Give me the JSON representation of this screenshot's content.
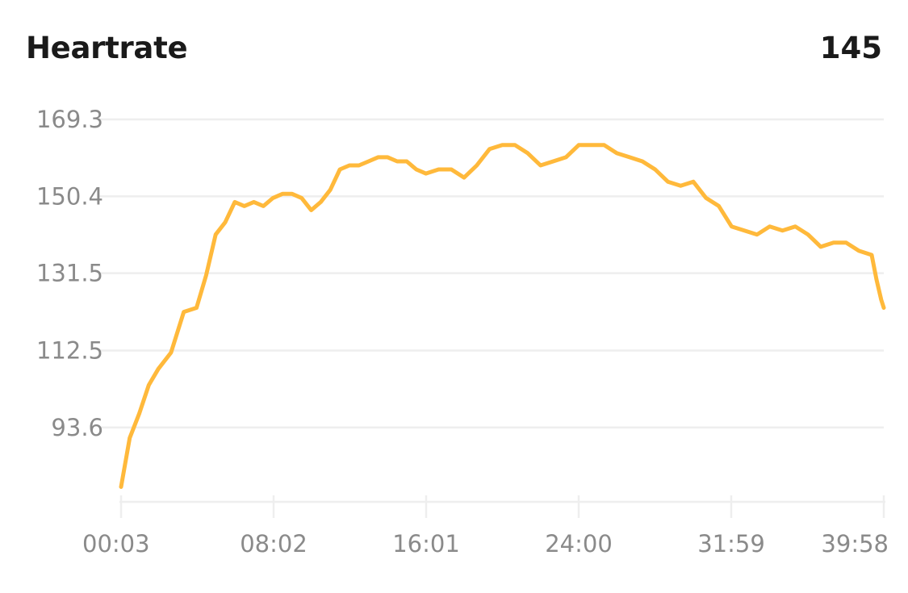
{
  "header": {
    "title": "Heartrate",
    "value": "145"
  },
  "colors": {
    "line": "#ffb93b",
    "grid": "#eeeeee",
    "axis_text": "#8a8a8a",
    "title": "#1a1a1a"
  },
  "chart_data": {
    "type": "line",
    "title": "Heartrate",
    "xlabel": "",
    "ylabel": "",
    "y_ticks": [
      93.6,
      112.5,
      131.5,
      150.4,
      169.3
    ],
    "y_tick_labels": [
      "93.6",
      "112.5",
      "131.5",
      "150.4",
      "169.3"
    ],
    "x_ticks": [
      3,
      482,
      961,
      1440,
      1919,
      2398
    ],
    "x_tick_labels": [
      "00:03",
      "08:02",
      "16:01",
      "24:00",
      "31:59",
      "39:58"
    ],
    "x_unit": "seconds",
    "ylim": [
      78.5,
      169.3
    ],
    "grid": true,
    "series": [
      {
        "name": "",
        "x": [
          3,
          30,
          60,
          90,
          120,
          160,
          200,
          240,
          270,
          300,
          330,
          360,
          390,
          420,
          450,
          480,
          510,
          540,
          570,
          600,
          630,
          660,
          690,
          720,
          750,
          780,
          810,
          840,
          870,
          900,
          930,
          960,
          1000,
          1040,
          1080,
          1120,
          1160,
          1200,
          1240,
          1280,
          1320,
          1360,
          1400,
          1440,
          1480,
          1520,
          1560,
          1600,
          1640,
          1680,
          1720,
          1760,
          1800,
          1840,
          1880,
          1920,
          1960,
          2000,
          2040,
          2080,
          2120,
          2160,
          2200,
          2240,
          2280,
          2320,
          2360,
          2375,
          2390,
          2398
        ],
        "values": [
          79,
          91,
          97,
          104,
          108,
          112,
          122,
          123,
          131,
          141,
          144,
          149,
          148,
          149,
          148,
          150,
          151,
          151,
          150,
          147,
          149,
          152,
          157,
          158,
          158,
          159,
          160,
          160,
          159,
          159,
          157,
          156,
          157,
          157,
          155,
          158,
          162,
          163,
          163,
          161,
          158,
          159,
          160,
          163,
          163,
          163,
          161,
          160,
          159,
          157,
          154,
          153,
          154,
          150,
          148,
          143,
          142,
          141,
          143,
          142,
          143,
          141,
          138,
          139,
          139,
          137,
          136,
          130,
          125,
          123
        ]
      }
    ]
  }
}
